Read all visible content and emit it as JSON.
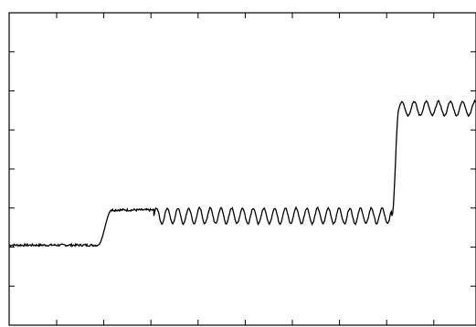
{
  "chart_data": {
    "type": "line",
    "title": "",
    "xlabel": "",
    "ylabel": "",
    "xlim": [
      0,
      100
    ],
    "ylim": [
      0,
      8
    ],
    "grid": false,
    "legend": false,
    "x_tick_count": 11,
    "y_tick_count": 8,
    "colors": {
      "line": "#000000",
      "axis": "#000000",
      "background": "#ffffff"
    },
    "series": [
      {
        "segments": [
          {
            "x_start": 0,
            "x_end": 19,
            "level": 2.05,
            "wave_amplitude": 0.0,
            "noise": 0.03
          },
          {
            "x_start": 19,
            "x_end": 22,
            "level_from": 2.05,
            "level_to": 2.95,
            "transition": true
          },
          {
            "x_start": 22,
            "x_end": 31,
            "level": 2.95,
            "wave_amplitude": 0.0,
            "noise": 0.03
          },
          {
            "x_start": 31,
            "x_end": 82,
            "level": 2.8,
            "wave_amplitude": 0.2,
            "wave_period": 2.3,
            "noise": 0.02
          },
          {
            "x_start": 82,
            "x_end": 83.5,
            "level_from": 2.8,
            "level_to": 5.55,
            "transition": true
          },
          {
            "x_start": 83.5,
            "x_end": 100,
            "level": 5.55,
            "wave_amplitude": 0.18,
            "wave_period": 2.6,
            "noise": 0.02
          }
        ]
      }
    ]
  }
}
